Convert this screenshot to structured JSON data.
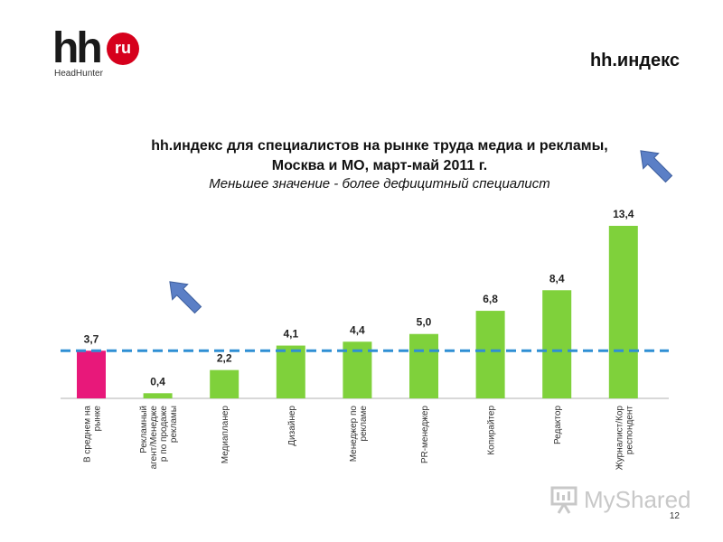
{
  "logo": {
    "brand": "hh",
    "badge": "ru",
    "sub": "HeadHunter"
  },
  "header": {
    "title": "hh.индекс"
  },
  "watermark": "MyShared",
  "page_number": "12",
  "colors": {
    "highlight_bar": "#e8187a",
    "bar": "#7fd13b",
    "average_line": "#2f8fd4",
    "arrow": "#5b7fc6"
  },
  "chart_data": {
    "type": "bar",
    "title_line1": "hh.индекс для специалистов на рынке труда медиа и рекламы,",
    "title_line2": "Москва и МО, март-май 2011 г.",
    "subtitle": "Меньшее значение - более дефицитный специалист",
    "categories": [
      "В среднем на рынке",
      "Рекламный агент/Менеджер по продаже рекламы",
      "Медиапланер",
      "Дизайнер",
      "Менеджер по рекламе",
      "PR-менеджер",
      "Копирайтер",
      "Редактор",
      "Журналист/Корреспондент"
    ],
    "category_lines": [
      [
        "В среднем на",
        "рынке"
      ],
      [
        "Рекламный",
        "агент/Менедже",
        "р по продаже",
        "рекламы"
      ],
      [
        "Медиапланер"
      ],
      [
        "Дизайнер"
      ],
      [
        "Менеджер по",
        "рекламе"
      ],
      [
        "PR-менеджер"
      ],
      [
        "Копирайтер"
      ],
      [
        "Редактор"
      ],
      [
        "Журналист/Кор",
        "респондент"
      ]
    ],
    "values": [
      3.7,
      0.4,
      2.2,
      4.1,
      4.4,
      5.0,
      6.8,
      8.4,
      13.4
    ],
    "value_labels": [
      "3,7",
      "0,4",
      "2,2",
      "4,1",
      "4,4",
      "5,0",
      "6,8",
      "8,4",
      "13,4"
    ],
    "highlight_index": 0,
    "reference_line": 3.7,
    "ylim": [
      0,
      13.4
    ],
    "grid": false
  }
}
